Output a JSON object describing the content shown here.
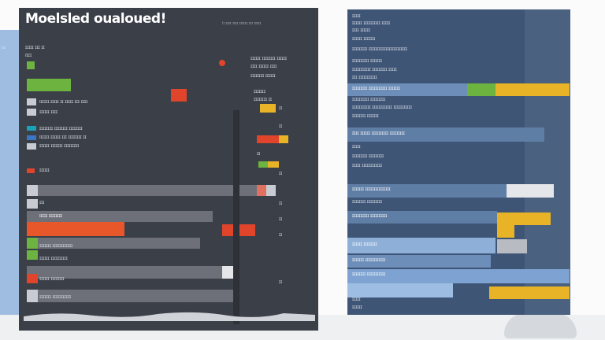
{
  "left_panel": {
    "title": "Moelsled oualoued!",
    "sub_caption": "Iɪ ɪɪɪɪ ɪɪɪɪ ɪɪɪɪɪɪ ɪɪɪ ɪɪɪɪɪ",
    "side_caption": "ɪɪɪ",
    "legend": {
      "lines": [
        "ɪɪɪɪɪ ɪɪɪ ɪɪ",
        "Iɪɪɪ"
      ]
    },
    "rows": [
      {
        "label": "Iɪɪɪɪɪ ɪɪɪɪɪ ɪɪ ɪɪɪɪɪ ɪɪɪ ɪɪɪɪ",
        "label2": "ɪɪɪɪɪɪ ɪɪɪɪ"
      },
      {
        "label": "ɪɪɪɪɪɪɪɪ ɪɪɪɪɪɪɪɪ ɪɪɪɪɪɪɪɪ",
        "label2": ""
      },
      {
        "label": "Iɪɪɪɪɪ ɪɪɪɪɪɪ ɪɪɪ ɪɪɪɪɪɪɪɪ ɪɪ",
        "label2": "ɪɪɪɪɪɪ ɪɪɪɪɪɪɪ ɪɪɪɪɪɪɪɪɪ"
      },
      {
        "label": "ɪɪɪɪɪɪ",
        "label2": ""
      },
      {
        "label": "ɪɪɪ",
        "label2": ""
      },
      {
        "label": "ɪɪɪɪɪɪɪɪ",
        "label2": "Iɪɪɪɪ ɪɪɪɪɪɪɪɪ"
      },
      {
        "label": "",
        "label2": ""
      },
      {
        "label": "ɪɪɪɪɪɪɪ ɪɪɪɪɪɪɪɪɪɪɪɪ",
        "label2": "ɪɪɪɪɪɪ ɪɪɪɪɪɪɪɪɪɪ"
      },
      {
        "label": "ɪɪɪɪɪɪ ɪɪɪɪɪɪɪɪ",
        "label2": ""
      },
      {
        "label": "ɪɪɪɪɪɪɪ ɪɪɪɪɪɪɪɪɪɪɪ",
        "label2": ""
      }
    ],
    "mid_labels": [
      "ɪɪɪɪɪɪ ɪɪɪɪɪɪɪɪ ɪɪɪɪɪɪ",
      "ɪɪɪɪ ɪɪɪɪɪɪ ɪɪɪɪ",
      "ɪɪɪɪɪɪɪɪ ɪɪɪɪɪɪ",
      "ɪɪɪɪɪɪɪ",
      "ɪɪɪɪɪɪɪɪ ɪɪ",
      "ɪɪ"
    ],
    "markers": [
      "ɪɪ",
      "ɪɪ",
      "ɪɪ",
      "ɪɪ",
      "ɪɪ",
      "ɪɪ",
      "ɪɪ"
    ]
  },
  "right_panel": {
    "lines": [
      "ɪɪɪɪɪ",
      "ɪɪɪɪɪɪ ɪɪɪɪɪɪɪɪɪɪ ɪɪɪɪɪ",
      "ɪɪɪɪ ɪɪɪɪɪɪ",
      "ɪɪɪɪɪɪ ɪɪɪɪɪɪɪ",
      "ɪɪɪɪɪɪɪɪɪ ɪɪɪɪɪɪɪɪɪɪɪɪɪɪɪɪɪɪɪɪɪɪɪ",
      "ɪɪɪɪɪɪɪɪɪɪ ɪɪɪɪɪɪɪ",
      "ɪɪɪɪɪɪɪɪɪɪɪ ɪɪɪɪɪɪɪɪɪ ɪɪɪɪɪ",
      "ɪɪɪ ɪɪɪɪɪɪɪɪɪɪɪ",
      "ɪɪɪɪɪɪɪɪɪ ɪɪɪɪɪɪɪɪɪɪɪ ɪɪɪɪɪɪɪ",
      "ɪɪɪɪɪɪɪɪɪɪ ɪɪɪɪɪɪɪɪɪ",
      "ɪɪɪɪɪɪɪɪɪɪɪ ɪɪɪɪɪɪɪɪɪɪɪɪ ɪɪɪɪɪɪɪɪɪɪɪ",
      "ɪɪɪɪɪɪɪɪ ɪɪɪɪɪɪɪ",
      "ɪɪɪɪ ɪɪɪɪɪɪ ɪɪɪɪɪɪɪɪɪɪ ɪɪɪɪɪɪɪɪɪ",
      "ɪɪɪɪɪ",
      "ɪɪɪɪɪɪɪɪɪ ɪɪɪɪɪɪɪɪɪ",
      "ɪɪɪɪɪ ɪɪɪɪɪɪɪɪɪɪɪɪ",
      "ɪɪɪɪɪɪɪ ɪɪɪɪɪɪɪɪɪɪɪɪɪɪɪ",
      "ɪɪɪɪɪɪɪɪ ɪɪɪɪɪɪɪɪɪ",
      "ɪɪɪɪɪɪɪɪɪɪ ɪɪɪɪɪɪɪɪɪɪ",
      "ɪɪɪɪɪɪ ɪɪɪɪɪɪɪɪ",
      "ɪɪɪɪɪɪɪ ɪɪɪɪɪɪɪɪɪɪɪɪ",
      "ɪɪɪɪɪɪɪɪ ɪɪɪɪɪɪɪɪɪɪɪ",
      "ɪɪɪɪɪ",
      "ɪɪɪɪɪɪ"
    ]
  },
  "colors": {
    "left_panel_bg": "#3b3f48",
    "right_panel_bg": "#3f5576",
    "green": "#6cb33f",
    "red": "#e0452b",
    "orange": "#e8572a",
    "yellow": "#e8b326",
    "teal": "#1aa3b8",
    "blue": "#3a76c4",
    "light_blue": "#8bb2de",
    "grey_bar": "#6e7079",
    "white_bar": "#e4e6ea"
  }
}
